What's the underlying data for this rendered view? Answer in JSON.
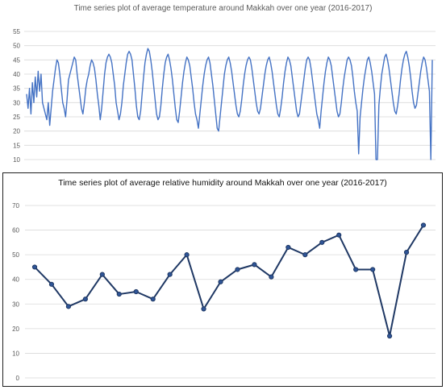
{
  "chart_data": [
    {
      "type": "line",
      "title": "Time series plot of average temperature around Makkah over one year (2016-2017)",
      "xlabel": "",
      "ylabel": "",
      "ylim": [
        10,
        55
      ],
      "yticks": [
        10,
        15,
        20,
        25,
        30,
        35,
        40,
        45,
        50,
        55
      ],
      "grid": true,
      "legend": "none",
      "color": "#4472c4",
      "series": [
        {
          "values": [
            33,
            28,
            35,
            26,
            37,
            30,
            39,
            32,
            41,
            34,
            40,
            30,
            28,
            26,
            24,
            30,
            22,
            28,
            34,
            38,
            42,
            45,
            44,
            40,
            35,
            30,
            28,
            25,
            31,
            38,
            40,
            42,
            44,
            46,
            45,
            40,
            36,
            32,
            28,
            26,
            30,
            35,
            38,
            40,
            43,
            45,
            44,
            42,
            38,
            33,
            29,
            24,
            28,
            34,
            40,
            44,
            46,
            47,
            46,
            44,
            40,
            36,
            30,
            27,
            24,
            26,
            30,
            36,
            40,
            44,
            47,
            48,
            47,
            45,
            40,
            35,
            29,
            25,
            24,
            27,
            33,
            39,
            44,
            47,
            49,
            48,
            45,
            41,
            36,
            31,
            26,
            24,
            25,
            29,
            35,
            40,
            44,
            46,
            47,
            45,
            42,
            38,
            33,
            28,
            24,
            23,
            27,
            32,
            37,
            41,
            44,
            46,
            45,
            43,
            39,
            35,
            30,
            26,
            24,
            21,
            26,
            31,
            36,
            40,
            43,
            45,
            46,
            44,
            40,
            36,
            31,
            26,
            21,
            20,
            25,
            30,
            35,
            40,
            43,
            45,
            46,
            44,
            41,
            37,
            33,
            29,
            26,
            25,
            27,
            31,
            36,
            40,
            43,
            45,
            46,
            45,
            42,
            38,
            34,
            30,
            27,
            26,
            28,
            32,
            36,
            40,
            43,
            45,
            46,
            44,
            41,
            37,
            33,
            29,
            26,
            25,
            28,
            32,
            37,
            41,
            44,
            46,
            45,
            43,
            39,
            35,
            31,
            27,
            25,
            26,
            30,
            34,
            38,
            42,
            45,
            46,
            45,
            42,
            38,
            34,
            30,
            26,
            24,
            21,
            27,
            32,
            37,
            41,
            44,
            46,
            45,
            43,
            39,
            35,
            31,
            27,
            25,
            26,
            30,
            35,
            39,
            42,
            45,
            46,
            45,
            43,
            39,
            34,
            30,
            27,
            12,
            25,
            30,
            35,
            39,
            42,
            45,
            46,
            44,
            41,
            37,
            33,
            10,
            10,
            29,
            35,
            40,
            43,
            46,
            47,
            45,
            42,
            38,
            34,
            30,
            27,
            26,
            29,
            33,
            38,
            42,
            45,
            47,
            48,
            46,
            43,
            39,
            34,
            30,
            28,
            29,
            33,
            37,
            41,
            44,
            46,
            45,
            42,
            38,
            34,
            10,
            45
          ]
        }
      ]
    },
    {
      "type": "line",
      "title": "Time series plot of average relative humidity around Makkah over one year (2016-2017)",
      "xlabel": "",
      "ylabel": "",
      "ylim": [
        0,
        70
      ],
      "yticks": [
        0,
        10,
        20,
        30,
        40,
        50,
        60,
        70
      ],
      "grid": true,
      "legend": "none",
      "color": "#1f3864",
      "series": [
        {
          "values": [
            45,
            38,
            29,
            32,
            42,
            34,
            35,
            32,
            42,
            50,
            28,
            39,
            44,
            46,
            41,
            53,
            50,
            55,
            58,
            44,
            44,
            17,
            51,
            62
          ]
        }
      ]
    }
  ]
}
